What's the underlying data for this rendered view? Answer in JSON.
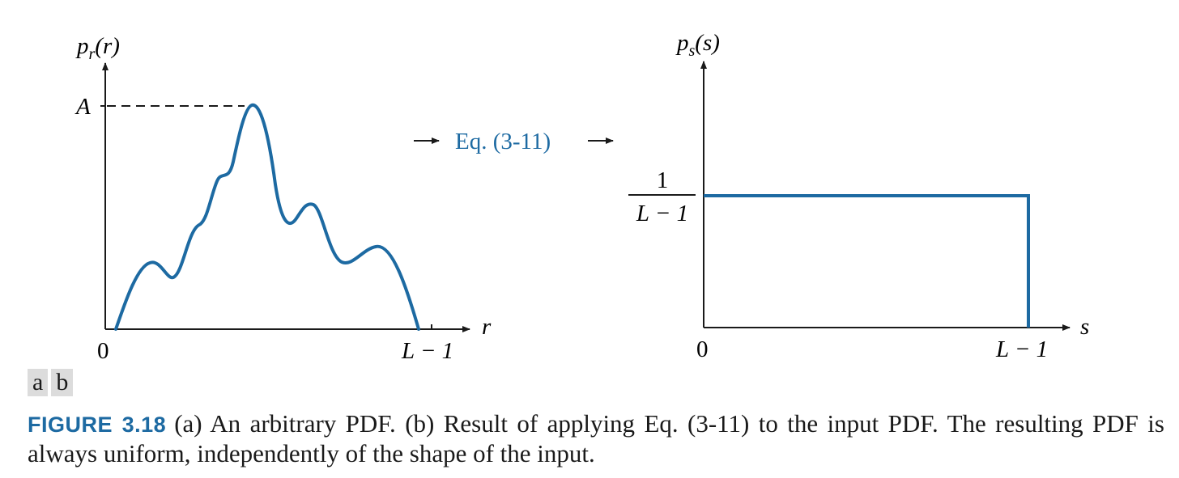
{
  "colors": {
    "curve": "#1d6aa2",
    "axis": "#1a1a1a",
    "caption_label": "#1d6aa2"
  },
  "panel_a": {
    "y_label_main": "p",
    "y_label_sub": "r",
    "y_label_arg": "(r)",
    "peak_label": "A",
    "x_axis_label": "r",
    "x_tick_zero": "0",
    "x_tick_end": "L − 1"
  },
  "transform": {
    "label": "Eq. (3-11)"
  },
  "panel_b": {
    "y_label_main": "p",
    "y_label_sub": "s",
    "y_label_arg": "(s)",
    "level_numerator": "1",
    "level_denominator": "L − 1",
    "x_axis_label": "s",
    "x_tick_zero": "0",
    "x_tick_end": "L − 1"
  },
  "panel_tags": [
    "a",
    "b"
  ],
  "caption": {
    "label": "FIGURE 3.18",
    "text": "(a) An arbitrary PDF. (b) Result of applying Eq. (3-11) to the input PDF. The resulting PDF is always uniform, independently of the shape of the input."
  }
}
